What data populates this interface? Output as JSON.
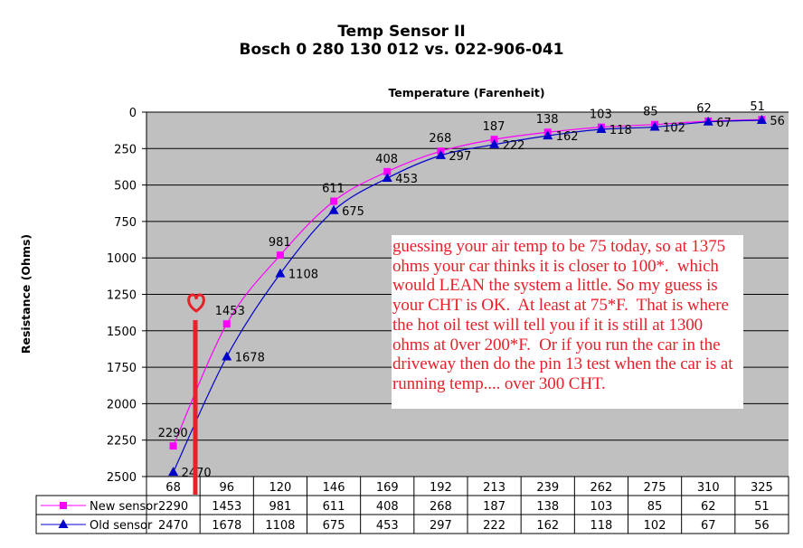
{
  "chart_data": {
    "type": "line",
    "title": "Temp Sensor II",
    "subtitle": "Bosch 0 280 130 012 vs. 022-906-041",
    "xlabel": "Temperature (Farenheit)",
    "ylabel": "Resistance (Ohms)",
    "ylim": [
      2500,
      0
    ],
    "y_inverted": true,
    "yticks": [
      0,
      250,
      500,
      750,
      1000,
      1250,
      1500,
      1750,
      2000,
      2250,
      2500
    ],
    "grid": true,
    "categories": [
      "68",
      "96",
      "120",
      "146",
      "169",
      "192",
      "213",
      "239",
      "262",
      "275",
      "310",
      "325"
    ],
    "series": [
      {
        "name": "New sensor",
        "color": "#ff00ff",
        "marker": "square",
        "values": [
          2290,
          1453,
          981,
          611,
          408,
          268,
          187,
          138,
          103,
          85,
          62,
          51
        ]
      },
      {
        "name": "Old sensor",
        "color": "#0000cc",
        "marker": "triangle",
        "values": [
          2470,
          1678,
          1108,
          675,
          453,
          297,
          222,
          162,
          118,
          102,
          67,
          56
        ]
      }
    ],
    "legend": "data-table-bottom",
    "annotation": "guessing your air temp to be 75 today, so at 1375 ohms your car thinks it is closer to 100*.  which would LEAN the system a little. So my guess is your CHT is OK.  At least at 75*F.  That is where the hot oil test will tell you if it is still at 1300 ohms at 0ver 200*F.  Or if you run the car in the driveway then do the pin 13 test when the car is at running temp.... over 300 CHT.",
    "annotation_color": "#e8202a"
  }
}
